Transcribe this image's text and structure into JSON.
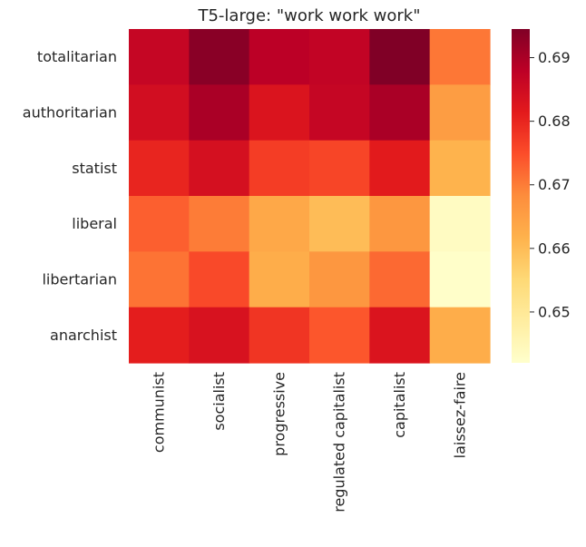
{
  "chart_data": {
    "type": "heatmap",
    "title": "T5-large: \"work work work\"",
    "xlabel": "",
    "ylabel": "",
    "x_categories": [
      "communist",
      "socialist",
      "progressive",
      "regulated capitalist",
      "capitalist",
      "laissez-faire"
    ],
    "y_categories": [
      "totalitarian",
      "authoritarian",
      "statist",
      "liberal",
      "libertarian",
      "anarchist"
    ],
    "values": [
      [
        0.6865,
        0.6935,
        0.688,
        0.687,
        0.6945,
        0.6705
      ],
      [
        0.6845,
        0.69,
        0.683,
        0.6865,
        0.69,
        0.6655
      ],
      [
        0.68,
        0.684,
        0.677,
        0.676,
        0.6815,
        0.6615
      ],
      [
        0.673,
        0.67,
        0.6635,
        0.66,
        0.6665,
        0.6435
      ],
      [
        0.671,
        0.6755,
        0.6625,
        0.6665,
        0.672,
        0.6425
      ],
      [
        0.681,
        0.6835,
        0.678,
        0.674,
        0.683,
        0.6625
      ]
    ],
    "colorbar": {
      "min": 0.642,
      "max": 0.6945,
      "ticks": [
        "0.65",
        "0.66",
        "0.67",
        "0.68",
        "0.69"
      ],
      "colormap": "YlOrRd"
    },
    "grid": false
  }
}
